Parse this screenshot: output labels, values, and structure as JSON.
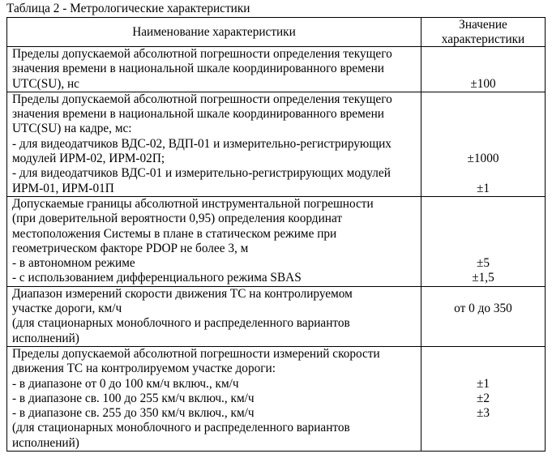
{
  "caption": "Таблица 2 - Метрологические характеристики",
  "header": {
    "name": "Наименование характеристики",
    "value_lines": [
      "Значение",
      "характеристики"
    ]
  },
  "rows": [
    {
      "left": [
        "Пределы допускаемой абсолютной погрешности определения текущего",
        "значения времени в национальной шкале координированного времени",
        "UTC(SU), нс"
      ],
      "right": [
        "",
        "",
        "±100"
      ]
    },
    {
      "left": [
        "Пределы допускаемой абсолютной погрешности определения текущего",
        "значения времени в национальной шкале координированного времени",
        "UTC(SU) на кадре, мс:",
        "- для видеодатчиков ВДС-02, ВДП-01 и измерительно-регистрирующих",
        "модулей ИРМ-02, ИРМ-02П;",
        "- для видеодатчиков ВДС-01 и измерительно-регистрирующих модулей",
        "ИРМ-01, ИРМ-01П"
      ],
      "right": [
        "",
        "",
        "",
        "",
        "±1000",
        "",
        "±1"
      ]
    },
    {
      "left": [
        "Допускаемые границы абсолютной инструментальной погрешности",
        "(при доверительной вероятности 0,95) определения координат",
        "местоположения Системы в плане в статическом режиме при",
        "геометрическом факторе PDOP не более 3, м",
        "- в автономном режиме",
        "- с использованием дифференциального режима SBAS"
      ],
      "right": [
        "",
        "",
        "",
        "",
        "±5",
        "±1,5"
      ]
    },
    {
      "left": [
        "Диапазон измерений скорости движения ТС на контролируемом",
        "участке дороги, км/ч",
        "(для стационарных моноблочного и распределенного вариантов",
        "исполнений)"
      ],
      "right": [
        "",
        "от 0 до 350",
        "",
        ""
      ]
    },
    {
      "left": [
        "Пределы допускаемой абсолютной погрешности измерений скорости",
        "движения ТС на контролируемом участке дороги:",
        "- в диапазоне от 0 до 100 км/ч включ., км/ч",
        "- в диапазоне св. 100 до 255 км/ч включ., км/ч",
        "- в диапазоне св. 255 до 350 км/ч включ., км/ч",
        "(для стационарных моноблочного и распределенного вариантов",
        "исполнений)"
      ],
      "right": [
        "",
        "",
        "±1",
        "±2",
        "±3",
        "",
        ""
      ]
    }
  ]
}
